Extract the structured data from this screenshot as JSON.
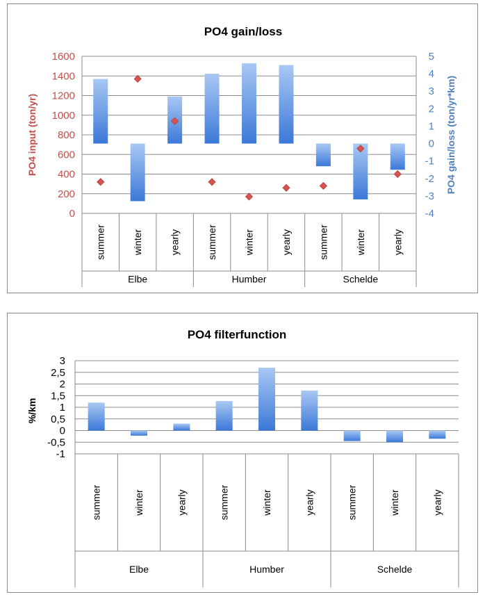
{
  "chart_data": [
    {
      "type": "bar",
      "title": "PO4 gain/loss",
      "ylabel": "PO4 input (ton/yr)",
      "y2label": "PO4 gain/loss (ton/yr*km)",
      "groups": [
        "Elbe",
        "Humber",
        "Schelde"
      ],
      "categories": [
        "summer",
        "winter",
        "yearly",
        "summer",
        "winter",
        "yearly",
        "summer",
        "winter",
        "yearly"
      ],
      "ylim": [
        0,
        1600
      ],
      "yticks": [
        "0",
        "200",
        "400",
        "600",
        "800",
        "1000",
        "1200",
        "1400",
        "1600"
      ],
      "y2lim": [
        -4,
        5
      ],
      "y2ticks": [
        "-4",
        "-3",
        "-2",
        "-1",
        "0",
        "1",
        "2",
        "3",
        "4",
        "5"
      ],
      "series": [
        {
          "axis": "secondary",
          "kind": "bar",
          "values": [
            3.7,
            -3.3,
            2.7,
            4.0,
            4.6,
            4.5,
            -1.3,
            -3.2,
            -1.5
          ]
        },
        {
          "axis": "primary",
          "kind": "marker",
          "values": [
            320,
            1370,
            940,
            320,
            170,
            260,
            280,
            660,
            400
          ]
        }
      ],
      "colors": {
        "bar": "#4f86d6",
        "marker": "#d9534f",
        "primary_axis_text": "#c0504d",
        "secondary_axis_text": "#4f81bd"
      }
    },
    {
      "type": "bar",
      "title": "PO4 filterfunction",
      "ylabel": "%/km",
      "groups": [
        "Elbe",
        "Humber",
        "Schelde"
      ],
      "categories": [
        "summer",
        "winter",
        "yearly",
        "summer",
        "winter",
        "yearly",
        "summer",
        "winter",
        "yearly"
      ],
      "ylim": [
        -1,
        3
      ],
      "yticks": [
        "-1",
        "-0,5",
        "0",
        "0,5",
        "1",
        "1,5",
        "2",
        "2,5",
        "3"
      ],
      "series": [
        {
          "kind": "bar",
          "values": [
            1.2,
            -0.22,
            0.3,
            1.27,
            2.7,
            1.72,
            -0.45,
            -0.5,
            -0.35
          ]
        }
      ],
      "colors": {
        "bar": "#4f86d6"
      }
    }
  ]
}
